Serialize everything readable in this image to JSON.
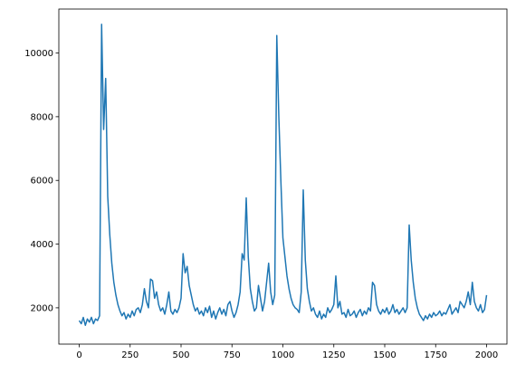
{
  "chart_data": {
    "type": "line",
    "color": "#1f77b4",
    "xlim": [
      -100,
      2100
    ],
    "ylim": [
      860,
      11380
    ],
    "xticks": [
      0,
      250,
      500,
      750,
      1000,
      1250,
      1500,
      1750,
      2000
    ],
    "yticks": [
      2000,
      4000,
      6000,
      8000,
      10000
    ],
    "x": [
      0,
      10,
      20,
      30,
      40,
      50,
      60,
      70,
      80,
      90,
      100,
      110,
      120,
      130,
      140,
      150,
      160,
      170,
      180,
      190,
      200,
      210,
      220,
      230,
      240,
      250,
      260,
      270,
      280,
      290,
      300,
      310,
      320,
      330,
      340,
      350,
      360,
      370,
      380,
      390,
      400,
      410,
      420,
      430,
      440,
      450,
      460,
      470,
      480,
      490,
      500,
      510,
      520,
      530,
      540,
      550,
      560,
      570,
      580,
      590,
      600,
      610,
      620,
      630,
      640,
      650,
      660,
      670,
      680,
      690,
      700,
      710,
      720,
      730,
      740,
      750,
      760,
      770,
      780,
      790,
      800,
      810,
      820,
      830,
      840,
      850,
      860,
      870,
      880,
      890,
      900,
      910,
      920,
      930,
      940,
      950,
      960,
      970,
      980,
      990,
      1000,
      1010,
      1020,
      1030,
      1040,
      1050,
      1060,
      1070,
      1080,
      1090,
      1100,
      1110,
      1120,
      1130,
      1140,
      1150,
      1160,
      1170,
      1180,
      1190,
      1200,
      1210,
      1220,
      1230,
      1240,
      1250,
      1260,
      1270,
      1280,
      1290,
      1300,
      1310,
      1320,
      1330,
      1340,
      1350,
      1360,
      1370,
      1380,
      1390,
      1400,
      1410,
      1420,
      1430,
      1440,
      1450,
      1460,
      1470,
      1480,
      1490,
      1500,
      1510,
      1520,
      1530,
      1540,
      1550,
      1560,
      1570,
      1580,
      1590,
      1600,
      1610,
      1620,
      1630,
      1640,
      1650,
      1660,
      1670,
      1680,
      1690,
      1700,
      1710,
      1720,
      1730,
      1740,
      1750,
      1760,
      1770,
      1780,
      1790,
      1800,
      1810,
      1820,
      1830,
      1840,
      1850,
      1860,
      1870,
      1880,
      1890,
      1900,
      1910,
      1920,
      1930,
      1940,
      1950,
      1960,
      1970,
      1980,
      1990,
      2000
    ],
    "values": [
      1600,
      1500,
      1700,
      1450,
      1650,
      1550,
      1700,
      1500,
      1650,
      1600,
      1750,
      10900,
      7600,
      9200,
      5500,
      4300,
      3400,
      2800,
      2400,
      2100,
      1900,
      1750,
      1850,
      1650,
      1800,
      1700,
      1900,
      1750,
      1950,
      2000,
      1850,
      2100,
      2600,
      2200,
      2000,
      2900,
      2850,
      2300,
      2500,
      2100,
      1900,
      2000,
      1800,
      2100,
      2500,
      1900,
      1800,
      1950,
      1850,
      2000,
      2300,
      3700,
      3100,
      3300,
      2700,
      2400,
      2100,
      1900,
      2000,
      1800,
      1900,
      1750,
      2000,
      1850,
      2050,
      1700,
      1900,
      1650,
      1850,
      2000,
      1800,
      1950,
      1750,
      2100,
      2200,
      1900,
      1700,
      1850,
      2100,
      2500,
      3700,
      3500,
      5450,
      3600,
      2600,
      2200,
      1900,
      2000,
      2700,
      2300,
      1900,
      2200,
      2800,
      3400,
      2500,
      2100,
      2400,
      10550,
      8000,
      6000,
      4200,
      3600,
      3000,
      2600,
      2300,
      2100,
      2000,
      1950,
      1850,
      2500,
      5700,
      3500,
      2600,
      2200,
      1900,
      2000,
      1800,
      1700,
      1900,
      1650,
      1800,
      1700,
      2000,
      1850,
      1950,
      2100,
      3000,
      2000,
      2200,
      1800,
      1850,
      1700,
      1950,
      1750,
      1800,
      1900,
      1700,
      1850,
      1950,
      1750,
      1900,
      1800,
      2000,
      1900,
      2800,
      2700,
      2100,
      1900,
      1800,
      1950,
      1850,
      2000,
      1800,
      1900,
      2100,
      1850,
      1950,
      1800,
      1900,
      2000,
      1850,
      2000,
      4600,
      3500,
      2800,
      2300,
      2000,
      1800,
      1700,
      1600,
      1750,
      1650,
      1800,
      1700,
      1850,
      1750,
      1800,
      1900,
      1750,
      1850,
      1800,
      1950,
      2100,
      1800,
      1900,
      2000,
      1850,
      2200,
      2100,
      2000,
      2200,
      2500,
      2100,
      2800,
      2200,
      2000,
      1900,
      2100,
      1850,
      1950,
      2400
    ]
  }
}
